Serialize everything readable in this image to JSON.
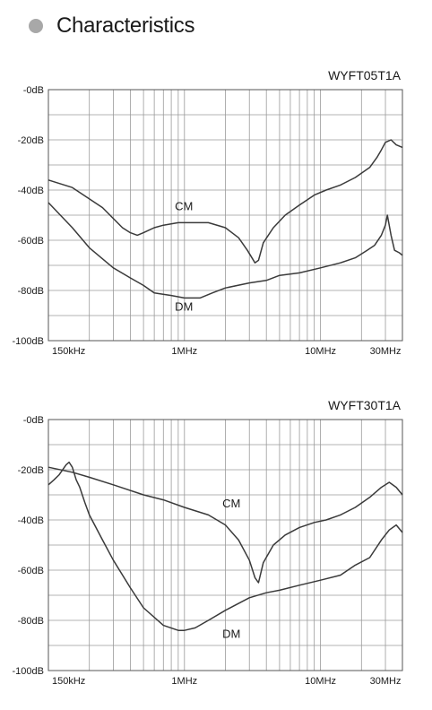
{
  "page": {
    "title": "Characteristics"
  },
  "chart_data": [
    {
      "type": "line",
      "title": "WYFT05T1A",
      "x_scale": "log",
      "xlim_hz": [
        100000,
        40000000
      ],
      "x_ticks": [
        {
          "label": "150kHz",
          "value": 150000
        },
        {
          "label": "1MHz",
          "value": 1000000
        },
        {
          "label": "10MHz",
          "value": 10000000
        },
        {
          "label": "30MHz",
          "value": 30000000
        }
      ],
      "ylim": [
        -100,
        0
      ],
      "y_ticks": [
        {
          "label": "-0dB",
          "value": 0
        },
        {
          "label": "-20dB",
          "value": -20
        },
        {
          "label": "-40dB",
          "value": -40
        },
        {
          "label": "-60dB",
          "value": -60
        },
        {
          "label": "-80dB",
          "value": -80
        },
        {
          "label": "-100dB",
          "value": -100
        }
      ],
      "grid": true,
      "series": [
        {
          "name": "CM",
          "label_at": [
            850000,
            -48
          ],
          "x": [
            100000,
            150000,
            250000,
            350000,
            400000,
            450000,
            500000,
            600000,
            700000,
            900000,
            1100000,
            1500000,
            2000000,
            2500000,
            2900000,
            3300000,
            3500000,
            3800000,
            4500000,
            5500000,
            7000000,
            9000000,
            11000000,
            14000000,
            18000000,
            23000000,
            26000000,
            28000000,
            30000000,
            33000000,
            36000000,
            40000000
          ],
          "y": [
            -36,
            -39,
            -47,
            -55,
            -57,
            -58,
            -57,
            -55,
            -54,
            -53,
            -53,
            -53,
            -55,
            -59,
            -64,
            -69,
            -68,
            -61,
            -55,
            -50,
            -46,
            -42,
            -40,
            -38,
            -35,
            -31,
            -27,
            -24,
            -21,
            -20,
            -22,
            -23
          ]
        },
        {
          "name": "DM",
          "label_at": [
            850000,
            -88
          ],
          "x": [
            100000,
            150000,
            200000,
            300000,
            400000,
            500000,
            600000,
            800000,
            1000000,
            1300000,
            1600000,
            2000000,
            3000000,
            4000000,
            5000000,
            7000000,
            10000000,
            14000000,
            18000000,
            22000000,
            25000000,
            28000000,
            30000000,
            31000000,
            33000000,
            35000000,
            38000000,
            40000000
          ],
          "y": [
            -45,
            -55,
            -63,
            -71,
            -75,
            -78,
            -81,
            -82,
            -83,
            -83,
            -81,
            -79,
            -77,
            -76,
            -74,
            -73,
            -71,
            -69,
            -67,
            -64,
            -62,
            -58,
            -54,
            -50,
            -58,
            -64,
            -65,
            -66
          ]
        }
      ]
    },
    {
      "type": "line",
      "title": "WYFT30T1A",
      "x_scale": "log",
      "xlim_hz": [
        100000,
        40000000
      ],
      "x_ticks": [
        {
          "label": "150kHz",
          "value": 150000
        },
        {
          "label": "1MHz",
          "value": 1000000
        },
        {
          "label": "10MHz",
          "value": 10000000
        },
        {
          "label": "30MHz",
          "value": 30000000
        }
      ],
      "ylim": [
        -100,
        0
      ],
      "y_ticks": [
        {
          "label": "-0dB",
          "value": 0
        },
        {
          "label": "-20dB",
          "value": -20
        },
        {
          "label": "-40dB",
          "value": -40
        },
        {
          "label": "-60dB",
          "value": -60
        },
        {
          "label": "-80dB",
          "value": -80
        },
        {
          "label": "-100dB",
          "value": -100
        }
      ],
      "grid": true,
      "series": [
        {
          "name": "CM",
          "label_at": [
            1900000,
            -35
          ],
          "x": [
            100000,
            150000,
            200000,
            300000,
            500000,
            700000,
            1000000,
            1500000,
            2000000,
            2500000,
            3000000,
            3300000,
            3500000,
            3800000,
            4500000,
            5500000,
            7000000,
            9000000,
            11000000,
            14000000,
            18000000,
            23000000,
            28000000,
            32000000,
            36000000,
            40000000
          ],
          "y": [
            -19,
            -21,
            -23,
            -26,
            -30,
            -32,
            -35,
            -38,
            -42,
            -48,
            -56,
            -63,
            -65,
            -57,
            -50,
            -46,
            -43,
            -41,
            -40,
            -38,
            -35,
            -31,
            -27,
            -25,
            -27,
            -30
          ]
        },
        {
          "name": "DM",
          "label_at": [
            1900000,
            -87
          ],
          "x": [
            100000,
            110000,
            120000,
            135000,
            142000,
            150000,
            160000,
            170000,
            185000,
            200000,
            250000,
            300000,
            400000,
            500000,
            700000,
            900000,
            1000000,
            1200000,
            1500000,
            2000000,
            3000000,
            4000000,
            5000000,
            7000000,
            10000000,
            14000000,
            18000000,
            23000000,
            28000000,
            32000000,
            36000000,
            40000000
          ],
          "y": [
            -26,
            -24,
            -22,
            -18,
            -17,
            -19,
            -24,
            -27,
            -33,
            -38,
            -48,
            -56,
            -67,
            -75,
            -82,
            -84,
            -84,
            -83,
            -80,
            -76,
            -71,
            -69,
            -68,
            -66,
            -64,
            -62,
            -58,
            -55,
            -48,
            -44,
            -42,
            -45
          ]
        }
      ]
    }
  ]
}
